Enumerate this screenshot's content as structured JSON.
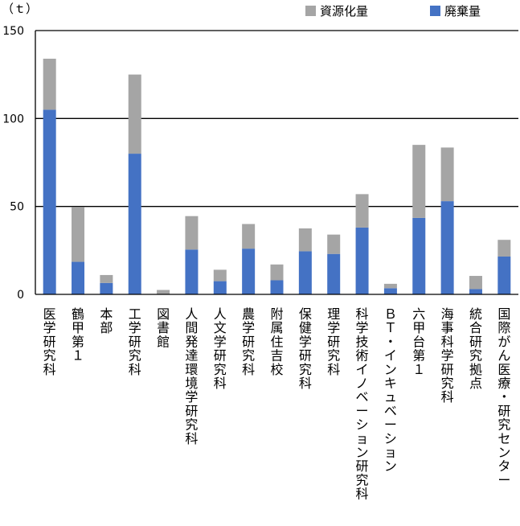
{
  "chart_data": {
    "type": "bar",
    "stacked": true,
    "unit_label": "（ｔ）",
    "ylim": [
      0,
      150
    ],
    "yticks": [
      0,
      50,
      100,
      150
    ],
    "grid": true,
    "legend_position": "top-right",
    "categories": [
      "医学研究科",
      "鶴甲第１",
      "本部",
      "工学研究科",
      "図書館",
      "人間発達環境学研究科",
      "人文学研究科",
      "農学研究科",
      "附属住吉校",
      "保健学研究科",
      "理学研究科",
      "科学技術イノベーション研究科",
      "ＢＴ・インキュベーション",
      "六甲台第１",
      "海事科学研究科",
      "統合研究拠点",
      "国際がん医療・研究センター"
    ],
    "series": [
      {
        "name": "廃棄量",
        "color": "#4472c4",
        "values": [
          105,
          18.5,
          6.5,
          80,
          0,
          25.5,
          7.5,
          26,
          8,
          24.5,
          23,
          38,
          3.5,
          43.5,
          53,
          3,
          21.5
        ]
      },
      {
        "name": "資源化量",
        "color": "#a5a5a5",
        "values": [
          29,
          31,
          4.5,
          45,
          2.5,
          19,
          6.5,
          14,
          9,
          13,
          11,
          19,
          2.5,
          41.5,
          30.5,
          7.5,
          9.5
        ]
      }
    ],
    "legend_order": [
      "資源化量",
      "廃棄量"
    ]
  }
}
